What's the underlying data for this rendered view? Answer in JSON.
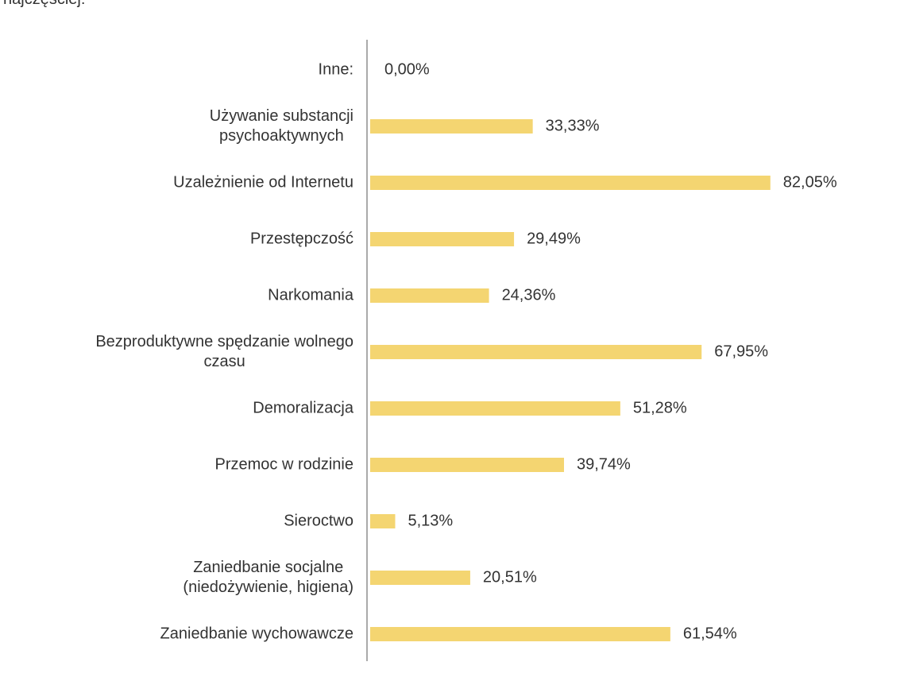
{
  "chart_data": {
    "type": "bar",
    "orientation": "horizontal",
    "subtitle": "najczęściej:",
    "categories": [
      "Inne:",
      "Używanie substancji\npsychoaktywnych",
      "Uzależnienie od Internetu",
      "Przestępczość",
      "Narkomania",
      "Bezproduktywne spędzanie wolnego\nczasu",
      "Demoralizacja",
      "Przemoc w rodzinie",
      "Sieroctwo",
      "Zaniedbanie socjalne\n(niedożywienie, higiena)",
      "Zaniedbanie wychowawcze"
    ],
    "values": [
      0,
      33.33,
      82.05,
      29.49,
      24.36,
      67.95,
      51.28,
      39.74,
      5.13,
      20.51,
      61.54
    ],
    "value_labels": [
      "0,00%",
      "33,33%",
      "82,05%",
      "29,49%",
      "24,36%",
      "67,95%",
      "51,28%",
      "39,74%",
      "5,13%",
      "20,51%",
      "61,54%"
    ],
    "color": "#f4d571"
  }
}
